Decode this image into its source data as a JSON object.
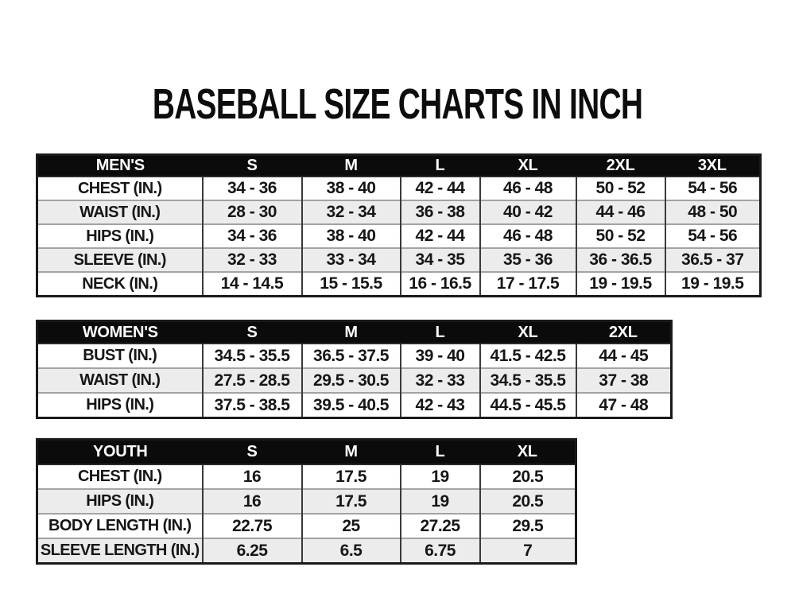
{
  "title": "BASEBALL SIZE CHARTS IN INCH",
  "colors": {
    "page_background": "#ffffff",
    "header_band_bg": "#0b0b0b",
    "header_band_text": "#ffffff",
    "row_alt_bg": "#ececec",
    "outer_border": "#1a1a1a",
    "column_border": "#3a3a3a",
    "row_border": "#a3a3a3",
    "text": "#151515"
  },
  "tables": {
    "mens": {
      "header": [
        "MEN'S",
        "S",
        "M",
        "L",
        "XL",
        "2XL",
        "3XL"
      ],
      "rows": [
        {
          "label": "CHEST (IN.)",
          "values": [
            "34 - 36",
            "38 - 40",
            "42 - 44",
            "46 - 48",
            "50 - 52",
            "54 - 56"
          ]
        },
        {
          "label": "WAIST (IN.)",
          "values": [
            "28 - 30",
            "32 - 34",
            "36 - 38",
            "40 - 42",
            "44 - 46",
            "48 - 50"
          ]
        },
        {
          "label": "HIPS (IN.)",
          "values": [
            "34 - 36",
            "38 - 40",
            "42 - 44",
            "46 - 48",
            "50 - 52",
            "54 - 56"
          ]
        },
        {
          "label": "SLEEVE (IN.)",
          "values": [
            "32 - 33",
            "33 - 34",
            "34 - 35",
            "35 - 36",
            "36 - 36.5",
            "36.5 - 37"
          ]
        },
        {
          "label": "NECK (IN.)",
          "values": [
            "14 - 14.5",
            "15 - 15.5",
            "16 - 16.5",
            "17 - 17.5",
            "19 - 19.5",
            "19 - 19.5"
          ]
        }
      ]
    },
    "womens": {
      "header": [
        "WOMEN'S",
        "S",
        "M",
        "L",
        "XL",
        "2XL"
      ],
      "rows": [
        {
          "label": "BUST (IN.)",
          "values": [
            "34.5 - 35.5",
            "36.5 - 37.5",
            "39 - 40",
            "41.5 - 42.5",
            "44 - 45"
          ]
        },
        {
          "label": "WAIST (IN.)",
          "values": [
            "27.5 - 28.5",
            "29.5 - 30.5",
            "32 - 33",
            "34.5 - 35.5",
            "37 - 38"
          ]
        },
        {
          "label": "HIPS (IN.)",
          "values": [
            "37.5 - 38.5",
            "39.5 - 40.5",
            "42 - 43",
            "44.5 - 45.5",
            "47 - 48"
          ]
        }
      ]
    },
    "youth": {
      "header": [
        "YOUTH",
        "S",
        "M",
        "L",
        "XL"
      ],
      "rows": [
        {
          "label": "CHEST (IN.)",
          "values": [
            "16",
            "17.5",
            "19",
            "20.5"
          ]
        },
        {
          "label": "HIPS (IN.)",
          "values": [
            "16",
            "17.5",
            "19",
            "20.5"
          ]
        },
        {
          "label": "BODY LENGTH (IN.)",
          "values": [
            "22.75",
            "25",
            "27.25",
            "29.5"
          ]
        },
        {
          "label": "SLEEVE LENGTH (IN.)",
          "values": [
            "6.25",
            "6.5",
            "6.75",
            "7"
          ]
        }
      ]
    }
  }
}
